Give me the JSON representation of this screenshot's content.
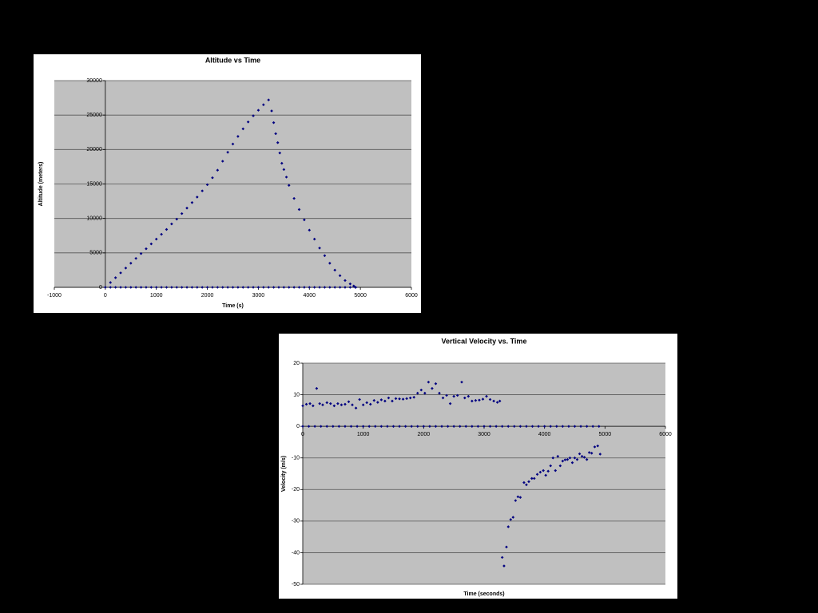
{
  "chart_data": [
    {
      "type": "scatter",
      "title": "Altitude vs Time",
      "x_label": "Time (s)",
      "y_label": "Altitude (meters)",
      "color": "#000080",
      "grid": true,
      "xlim": [
        -1000,
        6000
      ],
      "xticks": [
        -1000,
        0,
        1000,
        2000,
        3000,
        4000,
        5000,
        6000
      ],
      "ylim": [
        0,
        30000
      ],
      "yticks": [
        0,
        5000,
        10000,
        15000,
        20000,
        25000,
        30000
      ],
      "x": [
        0,
        100,
        200,
        300,
        400,
        500,
        600,
        700,
        800,
        900,
        1000,
        1100,
        1200,
        1300,
        1400,
        1500,
        1600,
        1700,
        1800,
        1900,
        2000,
        2100,
        2200,
        2300,
        2400,
        2500,
        2600,
        2700,
        2800,
        2900,
        3000,
        3100,
        3200,
        3260,
        3300,
        3340,
        3380,
        3420,
        3460,
        3500,
        3550,
        3600,
        3700,
        3800,
        3900,
        4000,
        4100,
        4200,
        4300,
        4400,
        4500,
        4600,
        4700,
        4800,
        4870,
        4910,
        0,
        100,
        200,
        300,
        400,
        500,
        600,
        700,
        800,
        900,
        1000,
        1100,
        1200,
        1300,
        1400,
        1500,
        1600,
        1700,
        1800,
        1900,
        2000,
        2100,
        2200,
        2300,
        2400,
        2500,
        2600,
        2700,
        2800,
        2900,
        3000,
        3100,
        3200,
        3300,
        3400,
        3500,
        3600,
        3700,
        3800,
        3900,
        4000,
        4100,
        4200,
        4300,
        4400,
        4500,
        4600,
        4700,
        4800,
        4900
      ],
      "values": [
        0,
        700,
        1400,
        2100,
        2800,
        3500,
        4200,
        4900,
        5600,
        6300,
        7000,
        7700,
        8400,
        9200,
        9900,
        10700,
        11500,
        12300,
        13100,
        14000,
        14900,
        15900,
        17000,
        18300,
        19600,
        20800,
        21900,
        23000,
        24000,
        24900,
        25700,
        26500,
        27200,
        25600,
        23900,
        22300,
        21000,
        19500,
        18000,
        17100,
        16000,
        14800,
        12900,
        11300,
        9800,
        8300,
        7000,
        5700,
        4600,
        3500,
        2500,
        1700,
        1000,
        500,
        200,
        0,
        0,
        0,
        0,
        0,
        0,
        0,
        0,
        0,
        0,
        0,
        0,
        0,
        0,
        0,
        0,
        0,
        0,
        0,
        0,
        0,
        0,
        0,
        0,
        0,
        0,
        0,
        0,
        0,
        0,
        0,
        0,
        0,
        0,
        0,
        0,
        0,
        0,
        0,
        0,
        0,
        0,
        0,
        0,
        0,
        0,
        0,
        0,
        0,
        0,
        0
      ]
    },
    {
      "type": "scatter",
      "title": "Vertical Velocity vs. Time",
      "x_label": "Time (seconds)",
      "y_label": "Velocity (m/s)",
      "color": "#000080",
      "grid": true,
      "xlim": [
        0,
        6000
      ],
      "xticks": [
        0,
        1000,
        2000,
        3000,
        4000,
        5000,
        6000
      ],
      "ylim": [
        -50,
        20
      ],
      "yticks": [
        -50,
        -40,
        -30,
        -20,
        -10,
        0,
        10,
        20
      ],
      "x": [
        0,
        60,
        120,
        170,
        230,
        280,
        330,
        400,
        460,
        520,
        580,
        640,
        700,
        760,
        820,
        880,
        940,
        1000,
        1060,
        1120,
        1180,
        1240,
        1300,
        1360,
        1420,
        1480,
        1540,
        1600,
        1660,
        1720,
        1780,
        1840,
        1900,
        1960,
        2020,
        2080,
        2140,
        2200,
        2260,
        2320,
        2380,
        2440,
        2500,
        2560,
        2630,
        2680,
        2740,
        2800,
        2860,
        2920,
        2980,
        3040,
        3100,
        3160,
        3220,
        3260,
        3300,
        3330,
        3370,
        3400,
        3440,
        3480,
        3520,
        3560,
        3600,
        3660,
        3700,
        3740,
        3790,
        3830,
        3880,
        3930,
        3980,
        4020,
        4060,
        4100,
        4140,
        4180,
        4220,
        4260,
        4300,
        4340,
        4380,
        4420,
        4460,
        4500,
        4540,
        4580,
        4620,
        4660,
        4700,
        4740,
        4780,
        4830,
        4880,
        4920,
        0,
        100,
        200,
        300,
        400,
        500,
        600,
        700,
        800,
        900,
        1000,
        1100,
        1200,
        1300,
        1400,
        1500,
        1600,
        1700,
        1800,
        1900,
        2000,
        2100,
        2200,
        2300,
        2400,
        2500,
        2600,
        2700,
        2800,
        2900,
        3000,
        3100,
        3200,
        3300,
        3400,
        3500,
        3600,
        3700,
        3800,
        3900,
        4000,
        4100,
        4200,
        4300,
        4400,
        4500,
        4600,
        4700,
        4800,
        4900
      ],
      "values": [
        6.5,
        7,
        7.2,
        6.5,
        12,
        7.2,
        6.8,
        7.5,
        7.2,
        6.5,
        7.2,
        6.8,
        7,
        7.8,
        6.8,
        5.8,
        8.5,
        6.8,
        7.5,
        7,
        8.2,
        7.6,
        8.4,
        8,
        9,
        8,
        8.8,
        8.7,
        8.6,
        8.8,
        9,
        9.2,
        10.5,
        11.5,
        10.5,
        14,
        12,
        13.5,
        10.5,
        9,
        9.8,
        7.2,
        9.5,
        9.8,
        14,
        9,
        9.5,
        8,
        8.2,
        8.3,
        8.6,
        9.5,
        8.5,
        8,
        7.6,
        8,
        -41.5,
        -44.2,
        -38.2,
        -31.8,
        -29.5,
        -28.8,
        -23.5,
        -22.3,
        -22.5,
        -17.8,
        -18.5,
        -17.5,
        -16.5,
        -16.5,
        -15.2,
        -14.5,
        -14,
        -15.5,
        -14.2,
        -12.5,
        -10,
        -14,
        -9.5,
        -12.5,
        -11,
        -10.6,
        -10.5,
        -10,
        -11.5,
        -10,
        -10.5,
        -8.7,
        -9.5,
        -9.8,
        -10.5,
        -8.3,
        -8.5,
        -6.5,
        -6.2,
        -8.8,
        0,
        0,
        0,
        0,
        0,
        0,
        0,
        0,
        0,
        0,
        0,
        0,
        0,
        0,
        0,
        0,
        0,
        0,
        0,
        0,
        0,
        0,
        0,
        0,
        0,
        0,
        0,
        0,
        0,
        0,
        0,
        0,
        0,
        0,
        0,
        0,
        0,
        0,
        0,
        0,
        0,
        0,
        0,
        0,
        0,
        0,
        0,
        0,
        0,
        0
      ]
    }
  ]
}
